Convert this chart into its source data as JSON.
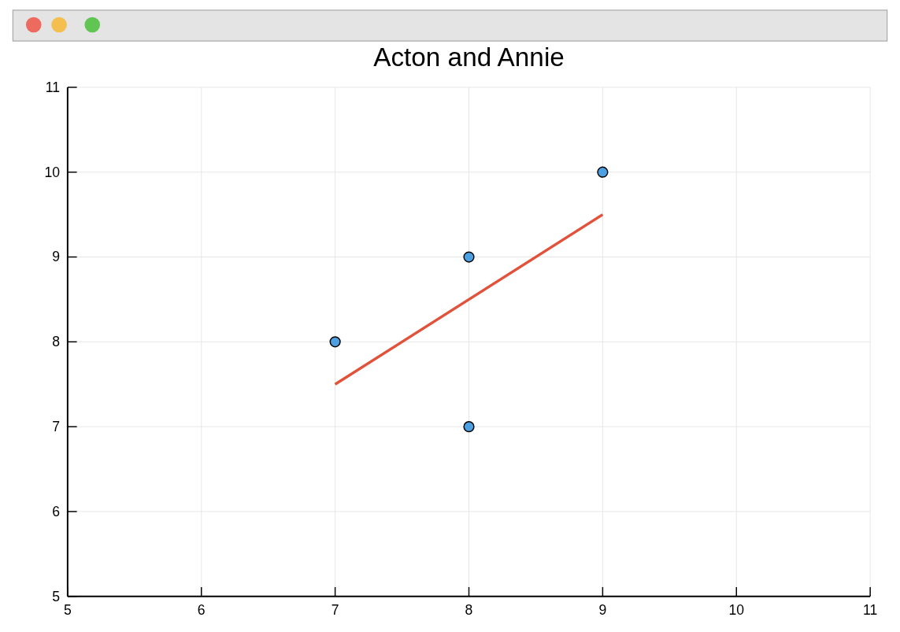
{
  "chart_data": {
    "type": "scatter",
    "title": "Acton and Annie",
    "xlim": [
      5,
      11
    ],
    "ylim": [
      5,
      11
    ],
    "xticks": [
      5,
      6,
      7,
      8,
      9,
      10,
      11
    ],
    "yticks": [
      5,
      6,
      7,
      8,
      9,
      10,
      11
    ],
    "grid": true,
    "series": [
      {
        "color": "#4c9fe0",
        "x": [
          7,
          8,
          8,
          9
        ],
        "values": [
          8,
          9,
          7,
          10
        ],
        "marker": "circle"
      },
      {
        "type": "line",
        "color": "#e2523b",
        "x": [
          7,
          9
        ],
        "values": [
          7.5,
          9.5
        ],
        "marker": "none",
        "line_style": "solid"
      }
    ]
  }
}
